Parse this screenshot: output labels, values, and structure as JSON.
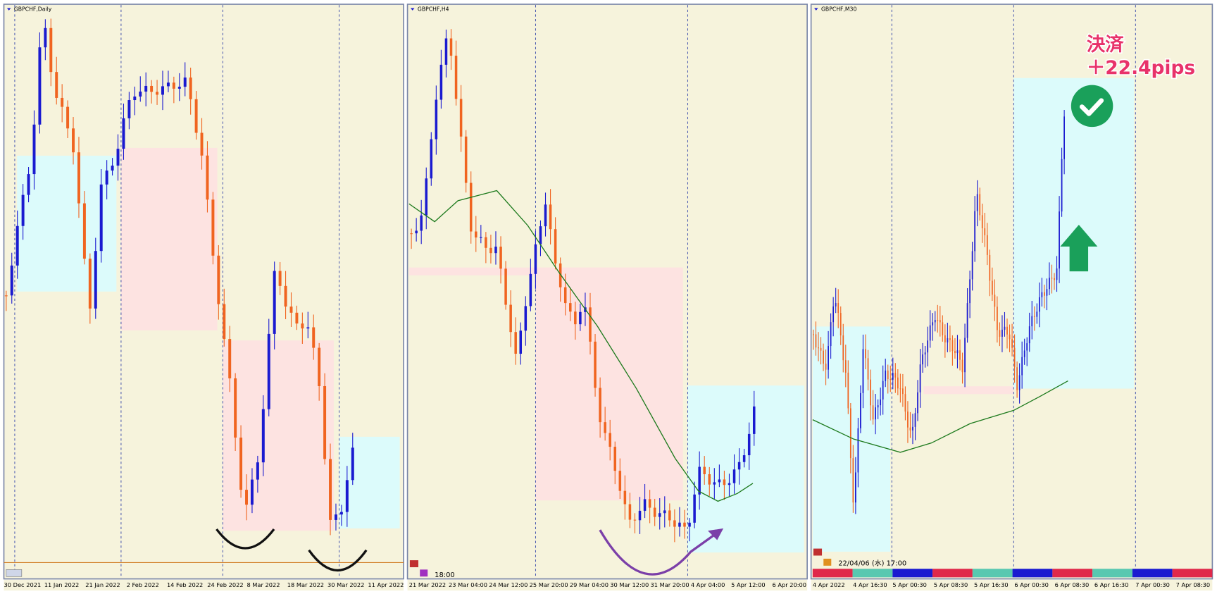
{
  "panels": [
    {
      "title": "GBPCHF,Daily",
      "x_labels": [
        "30 Dec 2021",
        "11 Jan 2022",
        "21 Jan 2022",
        "2 Feb 2022",
        "14 Feb 2022",
        "24 Feb 2022",
        "8 Mar 2022",
        "18 Mar 2022",
        "30 Mar 2022",
        "11 Apr 2022"
      ]
    },
    {
      "title": "GBPCHF,H4",
      "x_labels": [
        "21 Mar 2022",
        "23 Mar 04:00",
        "24 Mar 12:00",
        "25 Mar 20:00",
        "29 Mar 04:00",
        "30 Mar 12:00",
        "31 Mar 20:00",
        "4 Apr 04:00",
        "5 Apr 12:00",
        "6 Apr 20:00"
      ],
      "cursor_label": "18:00"
    },
    {
      "title": "GBPCHF,M30",
      "x_labels": [
        "4 Apr 2022",
        "4 Apr 16:30",
        "5 Apr 00:30",
        "5 Apr 08:30",
        "5 Apr 16:30",
        "6 Apr 00:30",
        "6 Apr 08:30",
        "6 Apr 16:30",
        "7 Apr 00:30",
        "7 Apr 08:30"
      ],
      "cursor_label": "22/04/06 (水) 17:00",
      "annotation": {
        "line1": "決済",
        "line2": "＋22.4pips"
      }
    }
  ]
}
